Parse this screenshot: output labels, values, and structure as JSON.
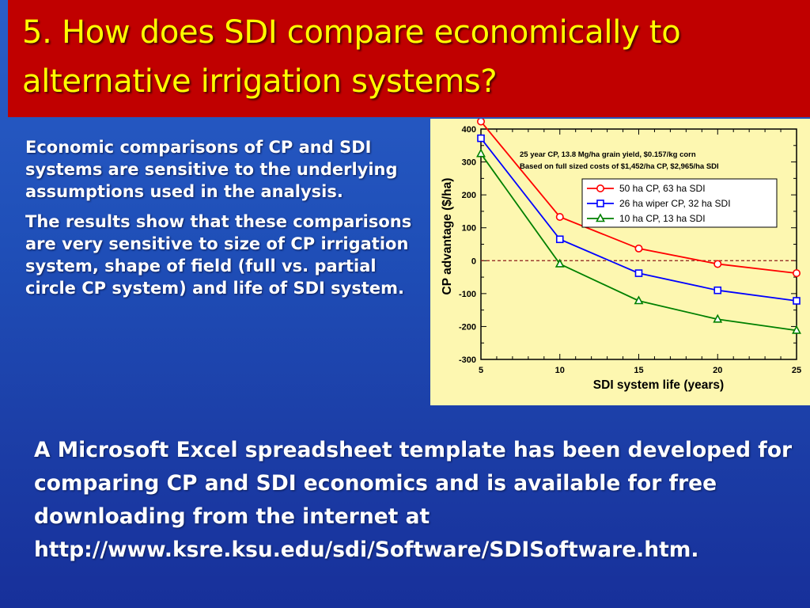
{
  "slide": {
    "title": "5. How does SDI compare economically to alternative irrigation systems?",
    "paragraphs": [
      "Economic comparisons of CP and SDI systems are sensitive to the underlying assumptions used in the analysis.",
      "The results show that these comparisons are very sensitive to size of CP irrigation system, shape of field (full vs. partial circle CP system) and life of SDI system."
    ],
    "footer": "A Microsoft Excel spreadsheet template has been developed for comparing CP and SDI economics and is available for free downloading from the internet at http://www.ksre.ksu.edu/sdi/Software/SDISoftware.htm."
  },
  "colors": {
    "title_bg": "#c00000",
    "title_text": "#ffff00",
    "chart_bg": "#fdf7b0",
    "series_red": "#ff0000",
    "series_blue": "#0000ff",
    "series_green": "#008000"
  },
  "chart_data": {
    "type": "line",
    "xlabel": "SDI system life (years)",
    "ylabel": "CP advantage ($/ha)",
    "xlim": [
      5,
      25
    ],
    "ylim": [
      -300,
      400
    ],
    "xticks": [
      5,
      10,
      15,
      20,
      25
    ],
    "yticks": [
      400,
      300,
      200,
      100,
      0,
      -100,
      -200,
      -300
    ],
    "annotations": [
      "25 year CP, 13.8 Mg/ha grain yield, $0.157/kg corn",
      "Based on full sized costs of $1,452/ha CP, $2,965/ha SDI"
    ],
    "reference_line_y": 0,
    "legend_position": "top-right",
    "x": [
      5,
      10,
      15,
      20,
      25
    ],
    "series": [
      {
        "name": "50 ha CP, 63 ha SDI",
        "marker": "circle",
        "color": "#ff0000",
        "values": [
          423,
          133,
          37,
          -10,
          -38
        ]
      },
      {
        "name": "26 ha wiper CP, 32 ha SDI",
        "marker": "square",
        "color": "#0000ff",
        "values": [
          372,
          65,
          -38,
          -90,
          -122
        ]
      },
      {
        "name": "10 ha CP, 13 ha SDI",
        "marker": "triangle",
        "color": "#008000",
        "values": [
          325,
          -10,
          -122,
          -178,
          -212
        ]
      }
    ]
  }
}
